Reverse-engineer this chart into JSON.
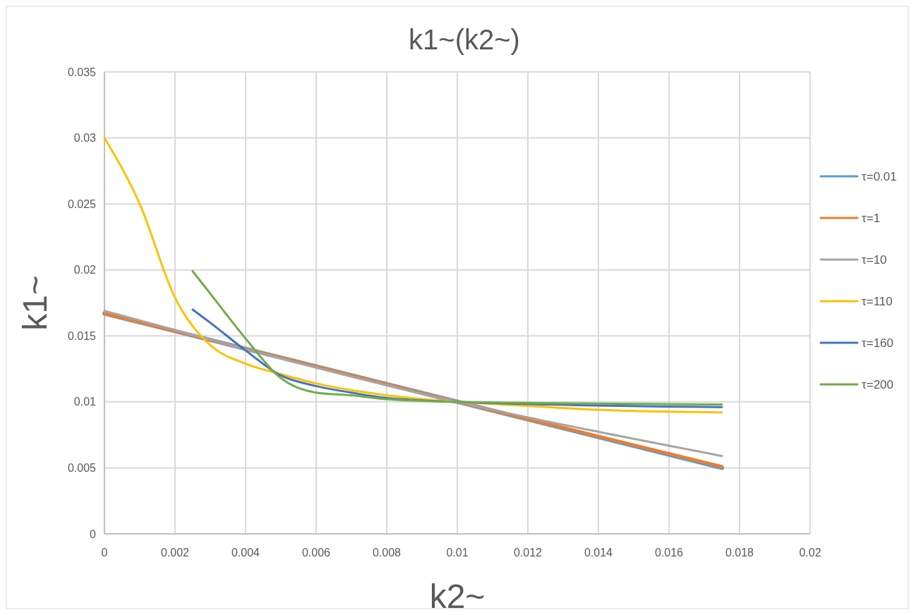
{
  "chart_data": {
    "type": "line",
    "title": "k1~(k2~)",
    "xlabel": "k2~",
    "ylabel": "k1~",
    "xlim": [
      0,
      0.02
    ],
    "xticks": [
      0,
      0.002,
      0.004,
      0.006,
      0.008,
      0.01,
      0.012,
      0.014,
      0.016,
      0.018,
      0.02
    ],
    "ylim": [
      0,
      0.035
    ],
    "yticks": [
      0,
      0.005,
      0.01,
      0.015,
      0.02,
      0.025,
      0.03,
      0.035
    ],
    "grid": true,
    "legend": "right",
    "marker": "none",
    "line_style": "solid",
    "series": [
      {
        "name": "τ=0.01",
        "color": "#5b9bd5",
        "x": [
          0,
          0.0175
        ],
        "values": [
          0.0167,
          0.005
        ]
      },
      {
        "name": "τ=1",
        "color": "#ed7d31",
        "x": [
          0,
          0.01,
          0.0175
        ],
        "values": [
          0.0167,
          0.01,
          0.0051
        ]
      },
      {
        "name": "τ=10",
        "color": "#a5a5a5",
        "x": [
          0,
          0.01,
          0.0175
        ],
        "values": [
          0.0169,
          0.01,
          0.0059
        ]
      },
      {
        "name": "τ=110",
        "color": "#ffc000",
        "x": [
          0,
          0.001,
          0.002,
          0.003,
          0.004,
          0.005,
          0.006,
          0.008,
          0.01,
          0.012,
          0.014,
          0.0175
        ],
        "values": [
          0.03,
          0.025,
          0.0179,
          0.0143,
          0.0129,
          0.0121,
          0.0114,
          0.0105,
          0.01,
          0.0097,
          0.0094,
          0.0092
        ]
      },
      {
        "name": "τ=160",
        "color": "#4472c4",
        "x": [
          0.0025,
          0.003,
          0.004,
          0.005,
          0.006,
          0.007,
          0.008,
          0.01,
          0.0175
        ],
        "values": [
          0.017,
          0.016,
          0.0139,
          0.012,
          0.0112,
          0.0107,
          0.0103,
          0.01,
          0.0096
        ]
      },
      {
        "name": "τ=200",
        "color": "#70ad47",
        "x": [
          0.0025,
          0.003,
          0.004,
          0.005,
          0.006,
          0.007,
          0.008,
          0.01,
          0.0175
        ],
        "values": [
          0.0199,
          0.0182,
          0.0148,
          0.0118,
          0.0107,
          0.0105,
          0.0102,
          0.01,
          0.0098
        ]
      }
    ]
  }
}
